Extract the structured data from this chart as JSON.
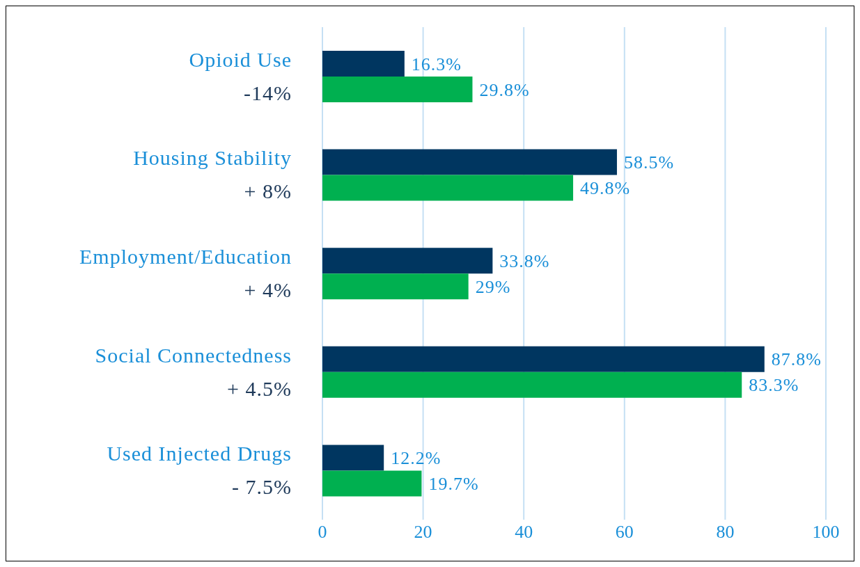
{
  "chart_data": {
    "type": "bar",
    "orientation": "horizontal",
    "categories": [
      "Opioid Use\n-14%",
      "Housing Stability\n+ 8%",
      "Employment/Education\n+ 4%",
      "Social Connectedness\n+ 4.5%",
      "Used Injected Drugs\n- 7.5%"
    ],
    "series": [
      {
        "color": "#003660",
        "values": [
          16.3,
          58.5,
          33.8,
          87.8,
          12.2
        ],
        "value_labels": [
          "16.3%",
          "58.5%",
          "33.8%",
          "87.8%",
          "12.2%"
        ]
      },
      {
        "color": "#00b050",
        "values": [
          29.8,
          49.8,
          29,
          83.3,
          19.7
        ],
        "value_labels": [
          "29.8%",
          "49.8%",
          "29%",
          "83.3%",
          "19.7%"
        ]
      }
    ],
    "xlim": [
      0,
      100
    ],
    "xticks": [
      0,
      20,
      40,
      60,
      80,
      100
    ],
    "grid": "x",
    "legend": false
  }
}
